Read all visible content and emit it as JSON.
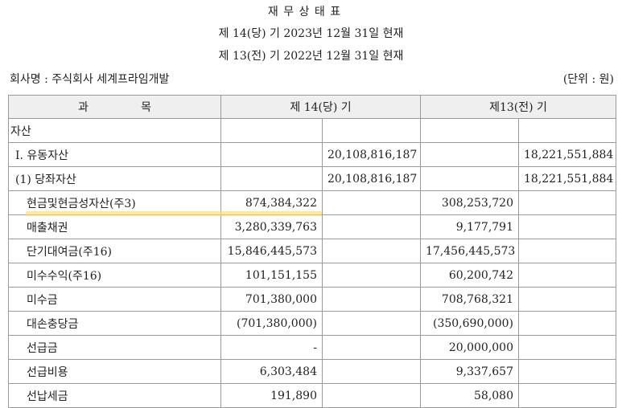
{
  "header": {
    "title": "재 무 상 태 표",
    "period_current": "제 14(당) 기 2023년 12월 31일 현재",
    "period_prior": "제 13(전) 기 2022년 12월 31일 현재",
    "company": "회사명 : 주식회사 세계프라임개발",
    "unit": "(단위 : 원)"
  },
  "table": {
    "columns": {
      "subject_a": "과",
      "subject_b": "목",
      "current": "제 14(당) 기",
      "prior": "제13(전) 기"
    },
    "rows": [
      {
        "label": "자산",
        "cur_detail": "",
        "cur_total": "",
        "pri_detail": "",
        "pri_total": ""
      },
      {
        "label": "I. 유동자산",
        "cur_detail": "",
        "cur_total": "20,108,816,187",
        "pri_detail": "",
        "pri_total": "18,221,551,884"
      },
      {
        "label": "(1) 당좌자산",
        "cur_detail": "",
        "cur_total": "20,108,816,187",
        "pri_detail": "",
        "pri_total": "18,221,551,884"
      },
      {
        "label": "현금및현금성자산(주3)",
        "cur_detail": "874,384,322",
        "cur_total": "",
        "pri_detail": "308,253,720",
        "pri_total": ""
      },
      {
        "label": "매출채권",
        "cur_detail": "3,280,339,763",
        "cur_total": "",
        "pri_detail": "9,177,791",
        "pri_total": ""
      },
      {
        "label": "단기대여금(주16)",
        "cur_detail": "15,846,445,573",
        "cur_total": "",
        "pri_detail": "17,456,445,573",
        "pri_total": ""
      },
      {
        "label": "미수수익(주16)",
        "cur_detail": "101,151,155",
        "cur_total": "",
        "pri_detail": "60,200,742",
        "pri_total": ""
      },
      {
        "label": "미수금",
        "cur_detail": "701,380,000",
        "cur_total": "",
        "pri_detail": "708,768,321",
        "pri_total": ""
      },
      {
        "label": "대손충당금",
        "cur_detail": "(701,380,000)",
        "cur_total": "",
        "pri_detail": "(350,690,000)",
        "pri_total": ""
      },
      {
        "label": "선급금",
        "cur_detail": "-",
        "cur_total": "",
        "pri_detail": "20,000,000",
        "pri_total": ""
      },
      {
        "label": "선급비용",
        "cur_detail": "6,303,484",
        "cur_total": "",
        "pri_detail": "9,337,657",
        "pri_total": ""
      },
      {
        "label": "선납세금",
        "cur_detail": "191,890",
        "cur_total": "",
        "pri_detail": "58,080",
        "pri_total": ""
      }
    ]
  },
  "highlight": {
    "color": "#fadc6e"
  }
}
